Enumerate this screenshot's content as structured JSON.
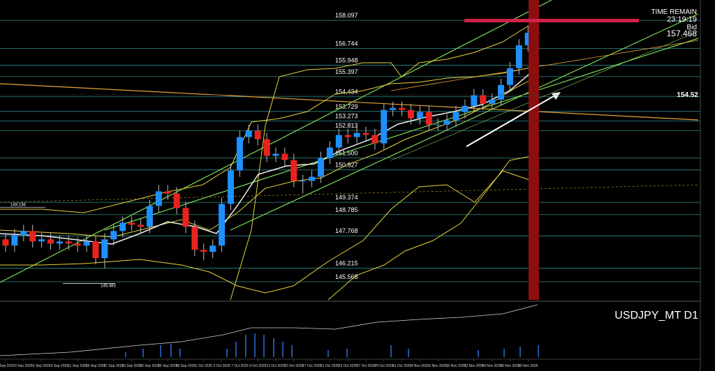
{
  "chart_data": {
    "type": "candlestick",
    "symbol": "USDJPY_MT D1",
    "time_remain_label": "TIME REMAIN",
    "time_remain": "23:19:19",
    "bid_label": "Bid",
    "bid": 157.468,
    "price_marker": 154.52,
    "high_marker": 149.136,
    "low_marker": 145.483,
    "categories": [
      "1 Sep 2025",
      null,
      "3 Sep 2025",
      null,
      "5 Sep 2025",
      null,
      "9 Sep 2025",
      null,
      "11 Sep 2025",
      null,
      "15 Sep 2025",
      null,
      "17 Sep 2025",
      null,
      "19 Sep 2025",
      null,
      "23 Sep 2025",
      null,
      "25 Sep 2025",
      null,
      "29 Sep 2025",
      null,
      "1 Oct 2025",
      null,
      "3 Oct 2025",
      null,
      "7 Oct 2025",
      null,
      "9 Oct 2025",
      null,
      "13 Oct 2025",
      null,
      "15 Oct 2025",
      null,
      "17 Oct 2025",
      null,
      "21 Oct 2025",
      null,
      "23 Oct 2025",
      null,
      "27 Oct 2025",
      null,
      "29 Oct 2025",
      null,
      "31 Oct 2025",
      null,
      "4 Nov 2025",
      null,
      "6 Nov 2025",
      null,
      "10 Nov 2025",
      null,
      "12 Nov 2025",
      null,
      "14 Nov 2025",
      null,
      "18 Nov 2025",
      null,
      "20 Nov 2025",
      null
    ],
    "open": [
      147.6,
      147.3,
      147.8,
      148.0,
      147.5,
      147.6,
      147.4,
      147.5,
      147.4,
      147.3,
      147.5,
      146.7,
      147.6,
      148.0,
      148.4,
      148.3,
      148.2,
      149.2,
      149.9,
      149.8,
      149.1,
      148.2,
      147.1,
      147.0,
      147.3,
      149.3,
      150.9,
      152.5,
      152.8,
      152.4,
      151.6,
      151.7,
      151.4,
      150.4,
      150.4,
      150.6,
      151.5,
      152.0,
      152.6,
      152.5,
      152.7,
      152.6,
      152.2,
      153.8,
      153.9,
      153.8,
      153.4,
      153.7,
      153.1,
      153.1,
      153.3,
      153.7,
      154.0,
      154.5,
      154.1,
      154.3,
      155.0,
      155.8,
      156.9,
      157.5
    ],
    "high": [
      147.9,
      148.1,
      148.3,
      148.3,
      147.9,
      147.9,
      147.8,
      147.8,
      147.7,
      147.8,
      147.8,
      147.9,
      148.3,
      148.7,
      148.7,
      148.6,
      149.5,
      150.2,
      150.2,
      150.1,
      149.4,
      148.5,
      147.4,
      147.6,
      149.6,
      151.2,
      152.8,
      153.1,
      153.1,
      152.7,
      152.0,
      152.0,
      151.7,
      150.7,
      150.9,
      151.8,
      152.3,
      152.9,
      152.9,
      153.0,
      153.0,
      152.9,
      154.1,
      154.2,
      154.2,
      154.1,
      154.0,
      154.0,
      153.4,
      153.6,
      154.0,
      154.3,
      154.8,
      154.8,
      154.6,
      155.3,
      156.1,
      157.2,
      157.8,
      157.8
    ],
    "low": [
      147.0,
      147.0,
      147.5,
      147.2,
      147.2,
      147.1,
      147.1,
      147.1,
      147.0,
      147.0,
      146.4,
      146.2,
      147.3,
      147.7,
      148.0,
      147.9,
      147.9,
      148.9,
      149.5,
      148.8,
      147.9,
      146.8,
      146.6,
      146.7,
      147.0,
      149.0,
      150.6,
      152.2,
      152.1,
      151.3,
      151.3,
      151.1,
      150.1,
      149.8,
      150.1,
      150.3,
      151.2,
      151.7,
      152.2,
      152.2,
      152.3,
      151.9,
      151.9,
      153.5,
      153.5,
      153.1,
      153.1,
      152.8,
      152.8,
      152.8,
      153.0,
      153.4,
      153.7,
      153.8,
      153.8,
      154.0,
      154.7,
      155.5,
      156.6,
      157.2
    ],
    "close": [
      147.3,
      147.8,
      148.0,
      147.5,
      147.6,
      147.4,
      147.5,
      147.4,
      147.3,
      147.5,
      146.7,
      147.6,
      148.0,
      148.4,
      148.3,
      148.2,
      149.2,
      149.9,
      149.8,
      149.1,
      148.2,
      147.1,
      147.0,
      147.3,
      149.3,
      150.9,
      152.5,
      152.8,
      152.4,
      151.6,
      151.7,
      151.4,
      150.4,
      150.4,
      150.6,
      151.5,
      152.0,
      152.6,
      152.5,
      152.7,
      152.6,
      152.2,
      153.8,
      153.9,
      153.8,
      153.4,
      153.7,
      153.1,
      153.1,
      153.3,
      153.7,
      154.0,
      154.5,
      154.1,
      154.3,
      155.0,
      155.8,
      156.9,
      157.5,
      157.47
    ],
    "up_color": "#1e90ff",
    "down_color": "#e8231e",
    "level_color": "#2f8c8c",
    "ylim": [
      144.7,
      159.07
    ],
    "levels": [
      158.097,
      156.744,
      155.948,
      155.397,
      154.434,
      153.729,
      153.273,
      152.813,
      {
        "value": 151.5,
        "label": "151.500"
      },
      150.927,
      149.374,
      148.785,
      147.768,
      146.215,
      145.568
    ]
  }
}
